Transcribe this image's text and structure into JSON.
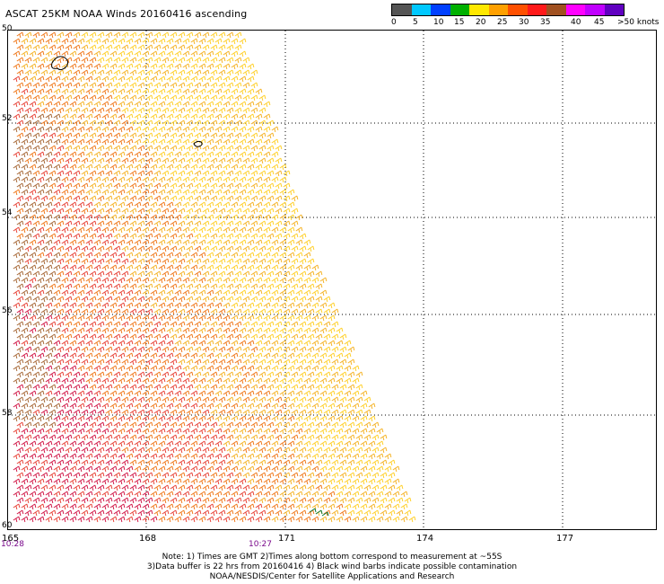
{
  "title": "ASCAT 25KM NOAA Winds 20160416 ascending",
  "colorbar": {
    "colors": [
      "#555555",
      "#00c8ff",
      "#0040ff",
      "#00b000",
      "#ffe800",
      "#ffa000",
      "#ff5000",
      "#ff1a1a",
      "#a05020",
      "#ff00ff",
      "#c000ff",
      "#6000c0"
    ],
    "labels": [
      "0",
      "5",
      "10",
      "15",
      "20",
      "25",
      "30",
      "35",
      "40",
      "45",
      ">50 knots"
    ]
  },
  "axes": {
    "lat_labels": [
      "50",
      "52",
      "54",
      "56",
      "58",
      "60"
    ],
    "lon_labels": [
      "165",
      "168",
      "171",
      "174",
      "177"
    ]
  },
  "times": [
    "10:28",
    "10:27"
  ],
  "notes": [
    "Note: 1) Times are GMT  2)Times along bottom correspond to measurement at ~55S",
    "3)Data buffer is 22 hrs from 20160416  4) Black wind barbs indicate possible contamination",
    "NOAA/NESDIS/Center for Satellite Applications and Research"
  ],
  "swath_colors": [
    "#d21b4a",
    "#e8453a",
    "#f07a1e",
    "#f5b429",
    "#ffd02a",
    "#a86a3a",
    "#b88a5a"
  ],
  "contamination_color": "#0a7a3a"
}
